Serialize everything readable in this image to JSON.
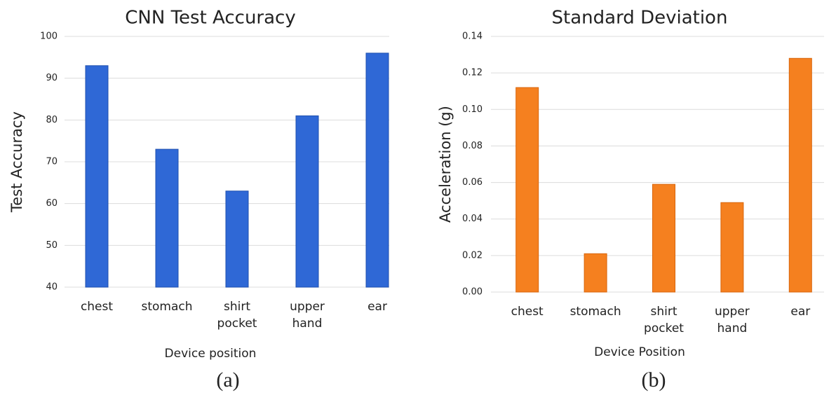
{
  "chart_data": [
    {
      "type": "bar",
      "title": "CNN Test Accuracy",
      "y_label": "Test Accuracy",
      "x_label": "Device position",
      "caption": "(a)",
      "categories": [
        "chest",
        "stomach",
        "shirt pocket",
        "upper hand",
        "ear"
      ],
      "values": [
        93,
        73,
        63,
        81,
        96
      ],
      "color": "#2f68d6",
      "ylim": [
        40,
        100
      ],
      "yticks": [
        40,
        50,
        60,
        70,
        80,
        90,
        100
      ],
      "grid": true
    },
    {
      "type": "bar",
      "title": "Standard Deviation",
      "y_label": "Acceleration (g)",
      "x_label": "Device Position",
      "caption": "(b)",
      "categories": [
        "chest",
        "stomach",
        "shirt pocket",
        "upper hand",
        "ear"
      ],
      "values": [
        0.112,
        0.021,
        0.059,
        0.049,
        0.128
      ],
      "color": "#f5801f",
      "ylim": [
        0,
        0.14
      ],
      "yticks": [
        {
          "value": 0,
          "label": "0.00"
        },
        {
          "value": 0.02,
          "label": "0.02"
        },
        {
          "value": 0.04,
          "label": "0.04"
        },
        {
          "value": 0.06,
          "label": "0.06"
        },
        {
          "value": 0.08,
          "label": "0.08"
        },
        {
          "value": 0.1,
          "label": "0.10"
        },
        {
          "value": 0.12,
          "label": "0.12"
        },
        {
          "value": 0.14,
          "label": "0.14"
        }
      ],
      "grid": true
    }
  ]
}
